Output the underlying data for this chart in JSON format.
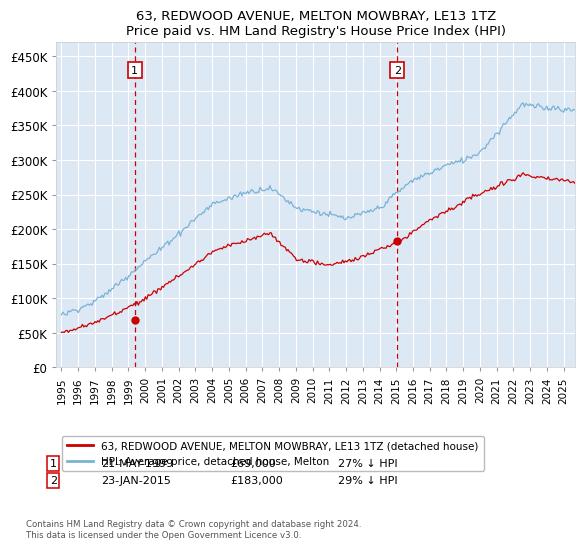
{
  "title": "63, REDWOOD AVENUE, MELTON MOWBRAY, LE13 1TZ",
  "subtitle": "Price paid vs. HM Land Registry's House Price Index (HPI)",
  "ylabel_ticks": [
    "£0",
    "£50K",
    "£100K",
    "£150K",
    "£200K",
    "£250K",
    "£300K",
    "£350K",
    "£400K",
    "£450K"
  ],
  "ytick_values": [
    0,
    50000,
    100000,
    150000,
    200000,
    250000,
    300000,
    350000,
    400000,
    450000
  ],
  "ylim": [
    0,
    470000
  ],
  "xlim_start": 1994.7,
  "xlim_end": 2025.7,
  "sale1_x": 1999.38,
  "sale1_y": 69000,
  "sale1_label": "1",
  "sale1_date": "21-MAY-1999",
  "sale1_price": "£69,000",
  "sale1_hpi": "27% ↓ HPI",
  "sale2_x": 2015.06,
  "sale2_y": 183000,
  "sale2_label": "2",
  "sale2_date": "23-JAN-2015",
  "sale2_price": "£183,000",
  "sale2_hpi": "29% ↓ HPI",
  "legend_entry1": "63, REDWOOD AVENUE, MELTON MOWBRAY, LE13 1TZ (detached house)",
  "legend_entry2": "HPI: Average price, detached house, Melton",
  "hpi_color": "#7ab3d4",
  "price_color": "#cc0000",
  "vline_color": "#cc0000",
  "background_color": "#dde8f5",
  "grid_color": "#ffffff",
  "box_color": "#cc0000",
  "footer": "Contains HM Land Registry data © Crown copyright and database right 2024.\nThis data is licensed under the Open Government Licence v3.0."
}
